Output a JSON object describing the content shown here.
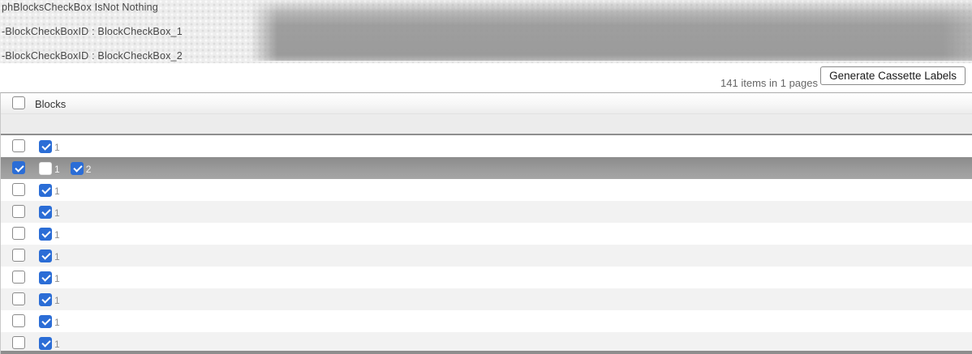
{
  "debug_banner": {
    "lines": [
      "phBlocksCheckBox IsNot Nothing",
      "-BlockCheckBoxID : BlockCheckBox_1",
      "-BlockCheckBoxID : BlockCheckBox_2"
    ]
  },
  "toolbar": {
    "items_summary": "141 items in 1 pages",
    "generate_button_label": "Generate Cassette Labels"
  },
  "table": {
    "header": {
      "column_label": "Blocks",
      "select_all_checked": false
    },
    "rows": [
      {
        "selected": false,
        "checked": false,
        "blocks": [
          {
            "label": "1",
            "checked": true
          }
        ]
      },
      {
        "selected": true,
        "checked": true,
        "blocks": [
          {
            "label": "1",
            "checked": false
          },
          {
            "label": "2",
            "checked": true
          }
        ]
      },
      {
        "selected": false,
        "checked": false,
        "blocks": [
          {
            "label": "1",
            "checked": true
          }
        ]
      },
      {
        "selected": false,
        "checked": false,
        "blocks": [
          {
            "label": "1",
            "checked": true
          }
        ]
      },
      {
        "selected": false,
        "checked": false,
        "blocks": [
          {
            "label": "1",
            "checked": true
          }
        ]
      },
      {
        "selected": false,
        "checked": false,
        "blocks": [
          {
            "label": "1",
            "checked": true
          }
        ]
      },
      {
        "selected": false,
        "checked": false,
        "blocks": [
          {
            "label": "1",
            "checked": true
          }
        ]
      },
      {
        "selected": false,
        "checked": false,
        "blocks": [
          {
            "label": "1",
            "checked": true
          }
        ]
      },
      {
        "selected": false,
        "checked": false,
        "blocks": [
          {
            "label": "1",
            "checked": true
          }
        ]
      },
      {
        "selected": false,
        "checked": false,
        "blocks": [
          {
            "label": "1",
            "checked": true
          }
        ]
      }
    ],
    "partial_next_row_visible": true
  },
  "icons": {
    "checkmark_glyph": "✓"
  },
  "colors": {
    "accent_blue": "#2b6dd6",
    "selected_row_gray": "#9a9a9a",
    "stripe_gray": "#f2f2f2",
    "banner_gray": "#989898",
    "filter_row_gray": "#ececec",
    "border_gray": "#8e8e8e"
  }
}
